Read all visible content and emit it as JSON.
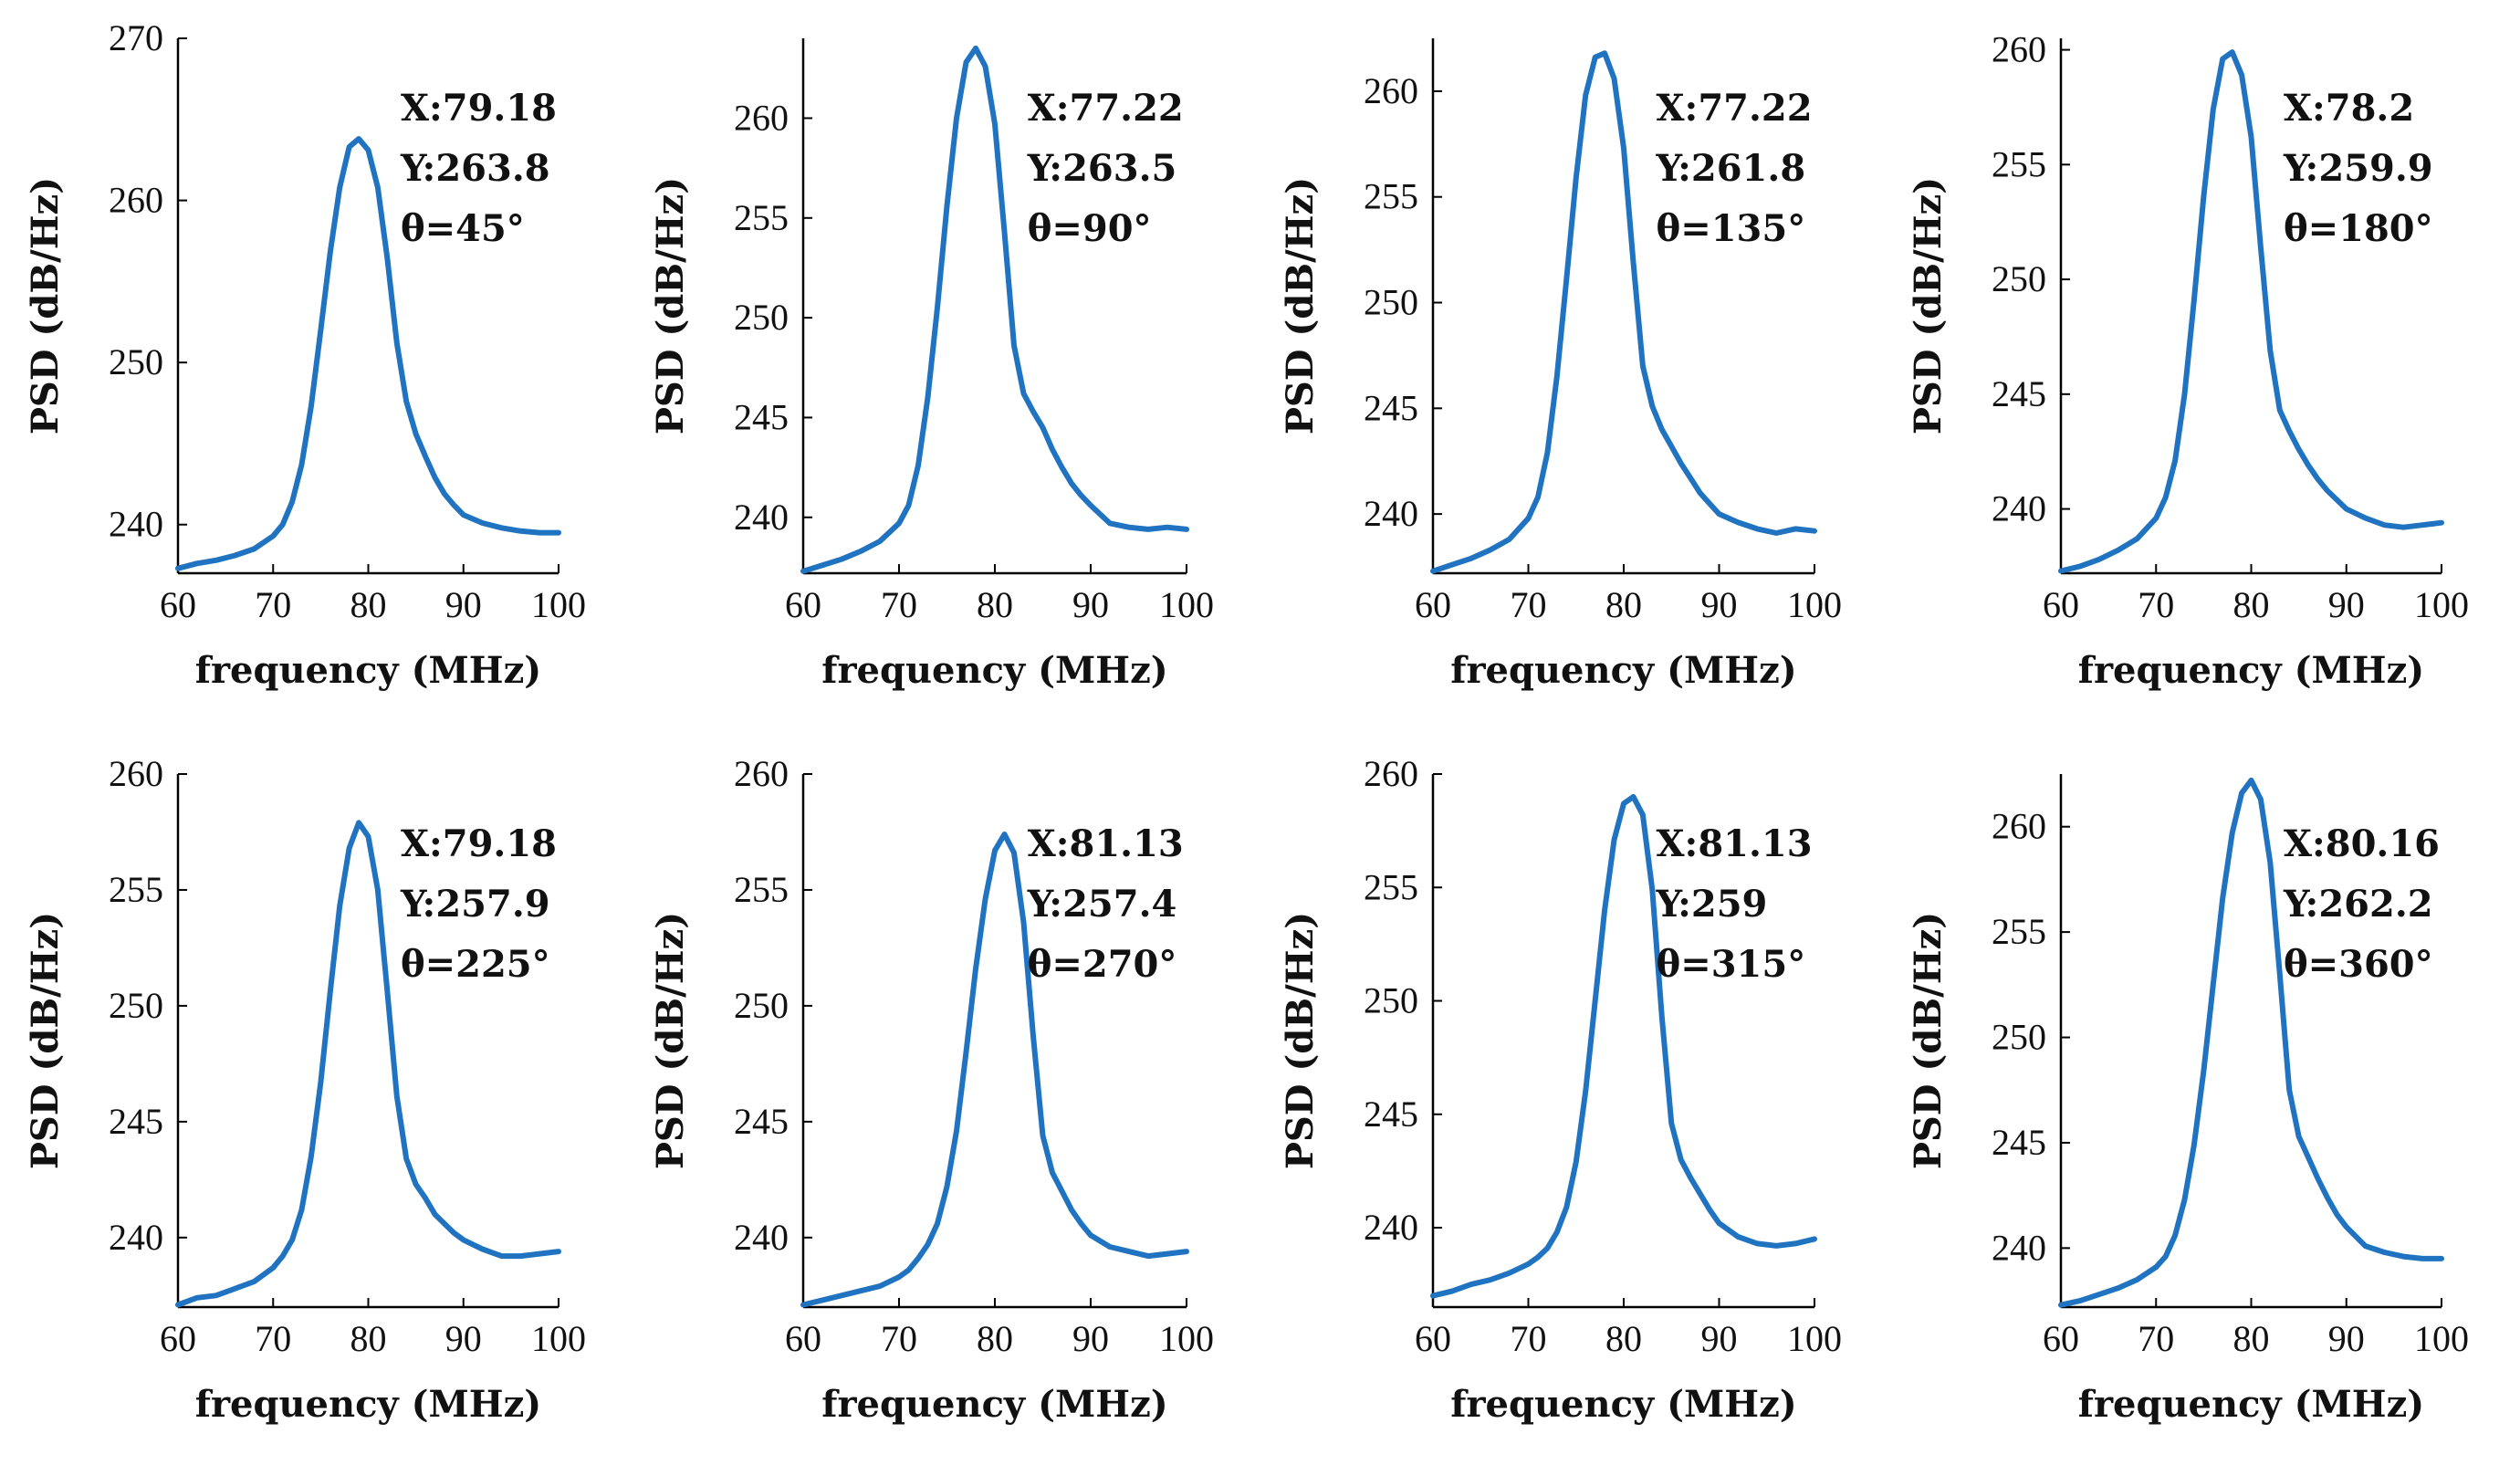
{
  "chart_data": [
    {
      "type": "line",
      "xlabel": "frequency (MHz)",
      "ylabel": "PSD (dB/Hz)",
      "xlim": [
        60,
        100
      ],
      "ylim": [
        237,
        270
      ],
      "xticks": [
        60,
        70,
        80,
        90,
        100
      ],
      "yticks": [
        240,
        250,
        260,
        270
      ],
      "annotation": [
        "X:79.18",
        "Y:263.8",
        "θ=45°"
      ],
      "series": [
        {
          "name": "PSD",
          "color": "#1f73c1",
          "x": [
            60,
            62,
            64,
            66,
            68,
            70,
            71,
            72,
            73,
            74,
            75,
            76,
            77,
            78,
            79,
            80,
            81,
            82,
            83,
            84,
            85,
            86,
            87,
            88,
            89,
            90,
            92,
            94,
            96,
            98,
            100
          ],
          "y": [
            237.3,
            237.6,
            237.8,
            238.1,
            238.5,
            239.3,
            240.0,
            241.4,
            243.7,
            247.3,
            252.0,
            256.8,
            260.8,
            263.3,
            263.8,
            263.1,
            260.8,
            256.4,
            251.2,
            247.6,
            245.6,
            244.2,
            242.9,
            241.9,
            241.2,
            240.6,
            240.1,
            239.8,
            239.6,
            239.5,
            239.5
          ]
        }
      ]
    },
    {
      "type": "line",
      "xlabel": "frequency (MHz)",
      "ylabel": "PSD (dB/Hz)",
      "xlim": [
        60,
        100
      ],
      "ylim": [
        237.2,
        264
      ],
      "xticks": [
        60,
        70,
        80,
        90,
        100
      ],
      "yticks": [
        240,
        245,
        250,
        255,
        260
      ],
      "annotation": [
        "X:77.22",
        "Y:263.5",
        "θ=90°"
      ],
      "series": [
        {
          "name": "PSD",
          "color": "#1f73c1",
          "x": [
            60,
            62,
            64,
            66,
            68,
            70,
            71,
            72,
            73,
            74,
            75,
            76,
            77,
            78,
            79,
            80,
            81,
            82,
            83,
            84,
            85,
            86,
            87,
            88,
            89,
            90,
            92,
            94,
            96,
            98,
            100
          ],
          "y": [
            237.3,
            237.6,
            237.9,
            238.3,
            238.8,
            239.7,
            240.6,
            242.6,
            246.0,
            250.5,
            255.6,
            260.0,
            262.8,
            263.5,
            262.6,
            259.7,
            254.3,
            248.6,
            246.2,
            245.3,
            244.5,
            243.4,
            242.5,
            241.7,
            241.1,
            240.6,
            239.7,
            239.5,
            239.4,
            239.5,
            239.4
          ]
        }
      ]
    },
    {
      "type": "line",
      "xlabel": "frequency (MHz)",
      "ylabel": "PSD (dB/Hz)",
      "xlim": [
        60,
        100
      ],
      "ylim": [
        237.2,
        262.5
      ],
      "xticks": [
        60,
        70,
        80,
        90,
        100
      ],
      "yticks": [
        240,
        245,
        250,
        255,
        260
      ],
      "annotation": [
        "X:77.22",
        "Y:261.8",
        "θ=135°"
      ],
      "series": [
        {
          "name": "PSD",
          "color": "#1f73c1",
          "x": [
            60,
            62,
            64,
            66,
            68,
            70,
            71,
            72,
            73,
            74,
            75,
            76,
            77,
            78,
            79,
            80,
            81,
            82,
            83,
            84,
            85,
            86,
            87,
            88,
            89,
            90,
            92,
            94,
            96,
            98,
            100
          ],
          "y": [
            237.3,
            237.6,
            237.9,
            238.3,
            238.8,
            239.8,
            240.8,
            242.9,
            246.5,
            251.1,
            255.9,
            259.8,
            261.6,
            261.8,
            260.6,
            257.3,
            251.9,
            247.0,
            245.1,
            244.0,
            243.2,
            242.4,
            241.7,
            241.0,
            240.5,
            240.0,
            239.6,
            239.3,
            239.1,
            239.3,
            239.2
          ]
        }
      ]
    },
    {
      "type": "line",
      "xlabel": "frequency (MHz)",
      "ylabel": "PSD (dB/Hz)",
      "xlim": [
        60,
        100
      ],
      "ylim": [
        237.2,
        260.5
      ],
      "xticks": [
        60,
        70,
        80,
        90,
        100
      ],
      "yticks": [
        240,
        245,
        250,
        255,
        260
      ],
      "annotation": [
        "X:78.2",
        "Y:259.9",
        "θ=180°"
      ],
      "series": [
        {
          "name": "PSD",
          "color": "#1f73c1",
          "x": [
            60,
            62,
            64,
            66,
            68,
            70,
            71,
            72,
            73,
            74,
            75,
            76,
            77,
            78,
            79,
            80,
            81,
            82,
            83,
            84,
            85,
            86,
            87,
            88,
            89,
            90,
            92,
            94,
            96,
            98,
            100
          ],
          "y": [
            237.3,
            237.5,
            237.8,
            238.2,
            238.7,
            239.6,
            240.5,
            242.1,
            245.0,
            249.1,
            253.6,
            257.4,
            259.6,
            259.9,
            258.9,
            256.2,
            251.4,
            246.9,
            244.3,
            243.4,
            242.6,
            241.9,
            241.3,
            240.8,
            240.4,
            240.0,
            239.6,
            239.3,
            239.2,
            239.3,
            239.4
          ]
        }
      ]
    },
    {
      "type": "line",
      "xlabel": "frequency (MHz)",
      "ylabel": "PSD (dB/Hz)",
      "xlim": [
        60,
        100
      ],
      "ylim": [
        237,
        260
      ],
      "xticks": [
        60,
        70,
        80,
        90,
        100
      ],
      "yticks": [
        240,
        245,
        250,
        255,
        260
      ],
      "annotation": [
        "X:79.18",
        "Y:257.9",
        "θ=225°"
      ],
      "series": [
        {
          "name": "PSD",
          "color": "#1f73c1",
          "x": [
            60,
            62,
            64,
            66,
            68,
            70,
            71,
            72,
            73,
            74,
            75,
            76,
            77,
            78,
            79,
            80,
            81,
            82,
            83,
            84,
            85,
            86,
            87,
            88,
            89,
            90,
            92,
            94,
            96,
            98,
            100
          ],
          "y": [
            237.1,
            237.4,
            237.5,
            237.8,
            238.1,
            238.7,
            239.2,
            239.9,
            241.2,
            243.5,
            246.7,
            250.6,
            254.3,
            256.8,
            257.9,
            257.3,
            255.0,
            250.6,
            246.1,
            243.4,
            242.3,
            241.7,
            241.0,
            240.6,
            240.2,
            239.9,
            239.5,
            239.2,
            239.2,
            239.3,
            239.4
          ]
        }
      ]
    },
    {
      "type": "line",
      "xlabel": "frequency (MHz)",
      "ylabel": "PSD (dB/Hz)",
      "xlim": [
        60,
        100
      ],
      "ylim": [
        237,
        260
      ],
      "xticks": [
        60,
        70,
        80,
        90,
        100
      ],
      "yticks": [
        240,
        245,
        250,
        255,
        260
      ],
      "annotation": [
        "X:81.13",
        "Y:257.4",
        "θ=270°"
      ],
      "series": [
        {
          "name": "PSD",
          "color": "#1f73c1",
          "x": [
            60,
            62,
            64,
            66,
            68,
            70,
            71,
            72,
            73,
            74,
            75,
            76,
            77,
            78,
            79,
            80,
            81,
            82,
            83,
            84,
            85,
            86,
            87,
            88,
            89,
            90,
            92,
            94,
            96,
            98,
            100
          ],
          "y": [
            237.1,
            237.3,
            237.5,
            237.7,
            237.9,
            238.3,
            238.6,
            239.1,
            239.7,
            240.6,
            242.2,
            244.6,
            248.0,
            251.6,
            254.6,
            256.7,
            257.4,
            256.6,
            253.6,
            248.7,
            244.4,
            242.8,
            242.0,
            241.2,
            240.6,
            240.1,
            239.6,
            239.4,
            239.2,
            239.3,
            239.4
          ]
        }
      ]
    },
    {
      "type": "line",
      "xlabel": "frequency (MHz)",
      "ylabel": "PSD (dB/Hz)",
      "xlim": [
        60,
        100
      ],
      "ylim": [
        236.5,
        260
      ],
      "xticks": [
        60,
        70,
        80,
        90,
        100
      ],
      "yticks": [
        240,
        245,
        250,
        255,
        260
      ],
      "annotation": [
        "X:81.13",
        "Y:259",
        "θ=315°"
      ],
      "series": [
        {
          "name": "PSD",
          "color": "#1f73c1",
          "x": [
            60,
            62,
            64,
            66,
            68,
            70,
            71,
            72,
            73,
            74,
            75,
            76,
            77,
            78,
            79,
            80,
            81,
            82,
            83,
            84,
            85,
            86,
            87,
            88,
            89,
            90,
            92,
            94,
            96,
            98,
            100
          ],
          "y": [
            237.0,
            237.2,
            237.5,
            237.7,
            238.0,
            238.4,
            238.7,
            239.1,
            239.8,
            240.9,
            242.9,
            246.0,
            250.0,
            254.0,
            257.1,
            258.7,
            259.0,
            258.2,
            254.9,
            249.3,
            244.6,
            243.0,
            242.2,
            241.5,
            240.8,
            240.2,
            239.6,
            239.3,
            239.2,
            239.3,
            239.5
          ]
        }
      ]
    },
    {
      "type": "line",
      "xlabel": "frequency (MHz)",
      "ylabel": "PSD (dB/Hz)",
      "xlim": [
        60,
        100
      ],
      "ylim": [
        237.2,
        262.5
      ],
      "xticks": [
        60,
        70,
        80,
        90,
        100
      ],
      "yticks": [
        240,
        245,
        250,
        255,
        260
      ],
      "annotation": [
        "X:80.16",
        "Y:262.2",
        "θ=360°"
      ],
      "series": [
        {
          "name": "PSD",
          "color": "#1f73c1",
          "x": [
            60,
            62,
            64,
            66,
            68,
            70,
            71,
            72,
            73,
            74,
            75,
            76,
            77,
            78,
            79,
            80,
            81,
            82,
            83,
            84,
            85,
            86,
            87,
            88,
            89,
            90,
            92,
            94,
            96,
            98,
            100
          ],
          "y": [
            237.3,
            237.5,
            237.8,
            238.1,
            238.5,
            239.1,
            239.6,
            240.6,
            242.3,
            244.9,
            248.4,
            252.5,
            256.6,
            259.7,
            261.6,
            262.2,
            261.3,
            258.3,
            253.0,
            247.5,
            245.3,
            244.3,
            243.3,
            242.4,
            241.6,
            241.0,
            240.1,
            239.8,
            239.6,
            239.5,
            239.5
          ]
        }
      ]
    }
  ]
}
